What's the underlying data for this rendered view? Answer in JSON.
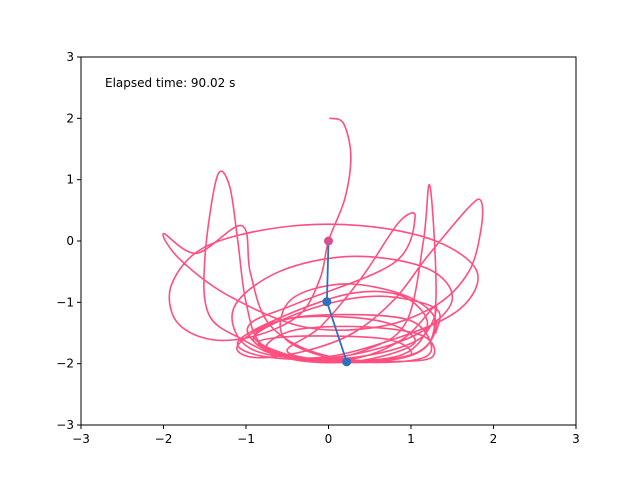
{
  "chart_data": {
    "type": "line",
    "title": "",
    "xlabel": "",
    "ylabel": "",
    "xlim": [
      -3,
      3
    ],
    "ylim": [
      -3,
      3
    ],
    "xticks": [
      -3,
      -2,
      -1,
      0,
      1,
      2,
      3
    ],
    "yticks": [
      -3,
      -2,
      -1,
      0,
      1,
      2,
      3
    ],
    "xtick_labels": [
      "−3",
      "−2",
      "−1",
      "0",
      "1",
      "2",
      "3"
    ],
    "ytick_labels": [
      "−3",
      "−2",
      "−1",
      "0",
      "1",
      "2",
      "3"
    ],
    "grid": false,
    "annotation": {
      "text": "Elapsed time:  90.02 s"
    },
    "colors": {
      "trace": "#ff4f7f",
      "arm": "#2f6fbf",
      "pivot": "#d94f8f"
    },
    "series": [
      {
        "role": "arm",
        "points": [
          [
            0,
            0
          ],
          [
            -0.02,
            -0.99
          ],
          [
            0.22,
            -1.97
          ]
        ]
      },
      {
        "role": "trace",
        "points": [
          [
            0.02,
            2.0
          ],
          [
            0.18,
            1.92
          ],
          [
            0.27,
            1.4
          ],
          [
            0.2,
            0.7
          ],
          [
            0.0,
            0.0
          ],
          [
            -0.1,
            -0.6
          ],
          [
            -0.35,
            -1.2
          ],
          [
            -0.9,
            -1.55
          ],
          [
            -1.45,
            -1.6
          ],
          [
            -1.85,
            -1.3
          ],
          [
            -1.9,
            -0.7
          ],
          [
            -1.5,
            -0.1
          ],
          [
            -0.6,
            0.22
          ],
          [
            0.4,
            0.25
          ],
          [
            1.3,
            0.0
          ],
          [
            1.8,
            -0.5
          ],
          [
            1.6,
            -1.1
          ],
          [
            0.9,
            -1.55
          ],
          [
            -0.1,
            -1.9
          ],
          [
            -0.95,
            -1.75
          ],
          [
            -1.15,
            -1.1
          ],
          [
            -0.6,
            -0.5
          ],
          [
            0.3,
            -0.25
          ],
          [
            1.2,
            -0.45
          ],
          [
            1.5,
            -0.95
          ],
          [
            1.1,
            -1.5
          ],
          [
            0.3,
            -1.85
          ],
          [
            -0.5,
            -1.9
          ],
          [
            -1.05,
            -1.6
          ],
          [
            -1.45,
            -1.2
          ],
          [
            -1.5,
            -0.3
          ],
          [
            -1.35,
            1.05
          ],
          [
            -1.2,
            0.9
          ],
          [
            -1.1,
            0.0
          ],
          [
            -1.0,
            -1.0
          ],
          [
            -0.8,
            -1.7
          ],
          [
            -0.2,
            -1.95
          ],
          [
            0.5,
            -1.75
          ],
          [
            0.95,
            -1.3
          ],
          [
            1.15,
            0.0
          ],
          [
            1.22,
            0.92
          ],
          [
            1.28,
            0.1
          ],
          [
            1.3,
            -1.0
          ],
          [
            1.2,
            -1.7
          ],
          [
            0.7,
            -1.95
          ],
          [
            0.0,
            -1.9
          ],
          [
            -0.55,
            -1.55
          ],
          [
            -0.45,
            -0.95
          ],
          [
            0.2,
            -0.7
          ],
          [
            0.95,
            -0.9
          ],
          [
            1.3,
            -1.3
          ],
          [
            1.1,
            -1.8
          ],
          [
            0.4,
            -1.95
          ],
          [
            -0.3,
            -1.75
          ],
          [
            -0.75,
            -1.3
          ],
          [
            -0.95,
            -0.5
          ],
          [
            -1.05,
            0.25
          ],
          [
            -1.6,
            -0.2
          ],
          [
            -2.0,
            0.12
          ],
          [
            -1.8,
            -0.3
          ],
          [
            -1.2,
            -0.9
          ],
          [
            -0.3,
            -1.4
          ],
          [
            0.6,
            -1.4
          ],
          [
            1.3,
            -1.05
          ],
          [
            1.7,
            -0.5
          ],
          [
            1.85,
            0.2
          ],
          [
            1.85,
            0.65
          ],
          [
            1.7,
            0.55
          ],
          [
            1.2,
            -0.25
          ],
          [
            0.8,
            -0.95
          ],
          [
            0.3,
            -1.5
          ],
          [
            -0.3,
            -1.8
          ],
          [
            -0.9,
            -1.9
          ],
          [
            -1.1,
            -1.7
          ],
          [
            -0.6,
            -1.3
          ],
          [
            0.2,
            -1.2
          ],
          [
            1.0,
            -1.3
          ],
          [
            1.25,
            -1.75
          ],
          [
            1.0,
            -1.95
          ],
          [
            0.2,
            -1.97
          ],
          [
            -0.5,
            -1.85
          ],
          [
            -0.9,
            -1.55
          ],
          [
            -0.4,
            -1.25
          ],
          [
            0.6,
            -1.3
          ],
          [
            1.05,
            -1.65
          ],
          [
            0.4,
            -1.95
          ],
          [
            -0.35,
            -1.95
          ],
          [
            -0.85,
            -1.7
          ],
          [
            -0.95,
            -1.35
          ],
          [
            -0.35,
            -1.0
          ],
          [
            0.8,
            -0.35
          ],
          [
            1.05,
            0.4
          ],
          [
            0.85,
            0.3
          ],
          [
            0.4,
            -0.6
          ],
          [
            -0.1,
            -1.4
          ],
          [
            -0.5,
            -1.8
          ],
          [
            0.1,
            -1.95
          ],
          [
            0.9,
            -1.85
          ],
          [
            1.2,
            -1.35
          ],
          [
            0.9,
            -0.9
          ],
          [
            0.3,
            -0.85
          ],
          [
            -0.5,
            -1.2
          ],
          [
            -1.1,
            -1.65
          ],
          [
            -0.7,
            -1.9
          ],
          [
            0.3,
            -1.9
          ],
          [
            1.1,
            -1.6
          ],
          [
            1.3,
            -1.05
          ],
          [
            0.9,
            -1.6
          ],
          [
            0.3,
            -1.92
          ],
          [
            -0.4,
            -1.9
          ],
          [
            -0.85,
            -1.65
          ],
          [
            -0.3,
            -1.55
          ],
          [
            0.7,
            -1.6
          ],
          [
            1.0,
            -1.85
          ],
          [
            0.5,
            -1.97
          ],
          [
            -0.2,
            -1.95
          ],
          [
            -0.75,
            -1.75
          ],
          [
            -0.4,
            -1.45
          ],
          [
            0.45,
            -1.4
          ],
          [
            1.15,
            -1.55
          ],
          [
            1.25,
            -1.9
          ],
          [
            0.7,
            -1.97
          ],
          [
            0.0,
            -1.97
          ],
          [
            -0.6,
            -1.85
          ],
          [
            -0.9,
            -1.55
          ],
          [
            -0.2,
            -1.1
          ],
          [
            0.6,
            -0.9
          ],
          [
            1.3,
            -1.1
          ],
          [
            1.3,
            -1.5
          ]
        ]
      }
    ]
  }
}
